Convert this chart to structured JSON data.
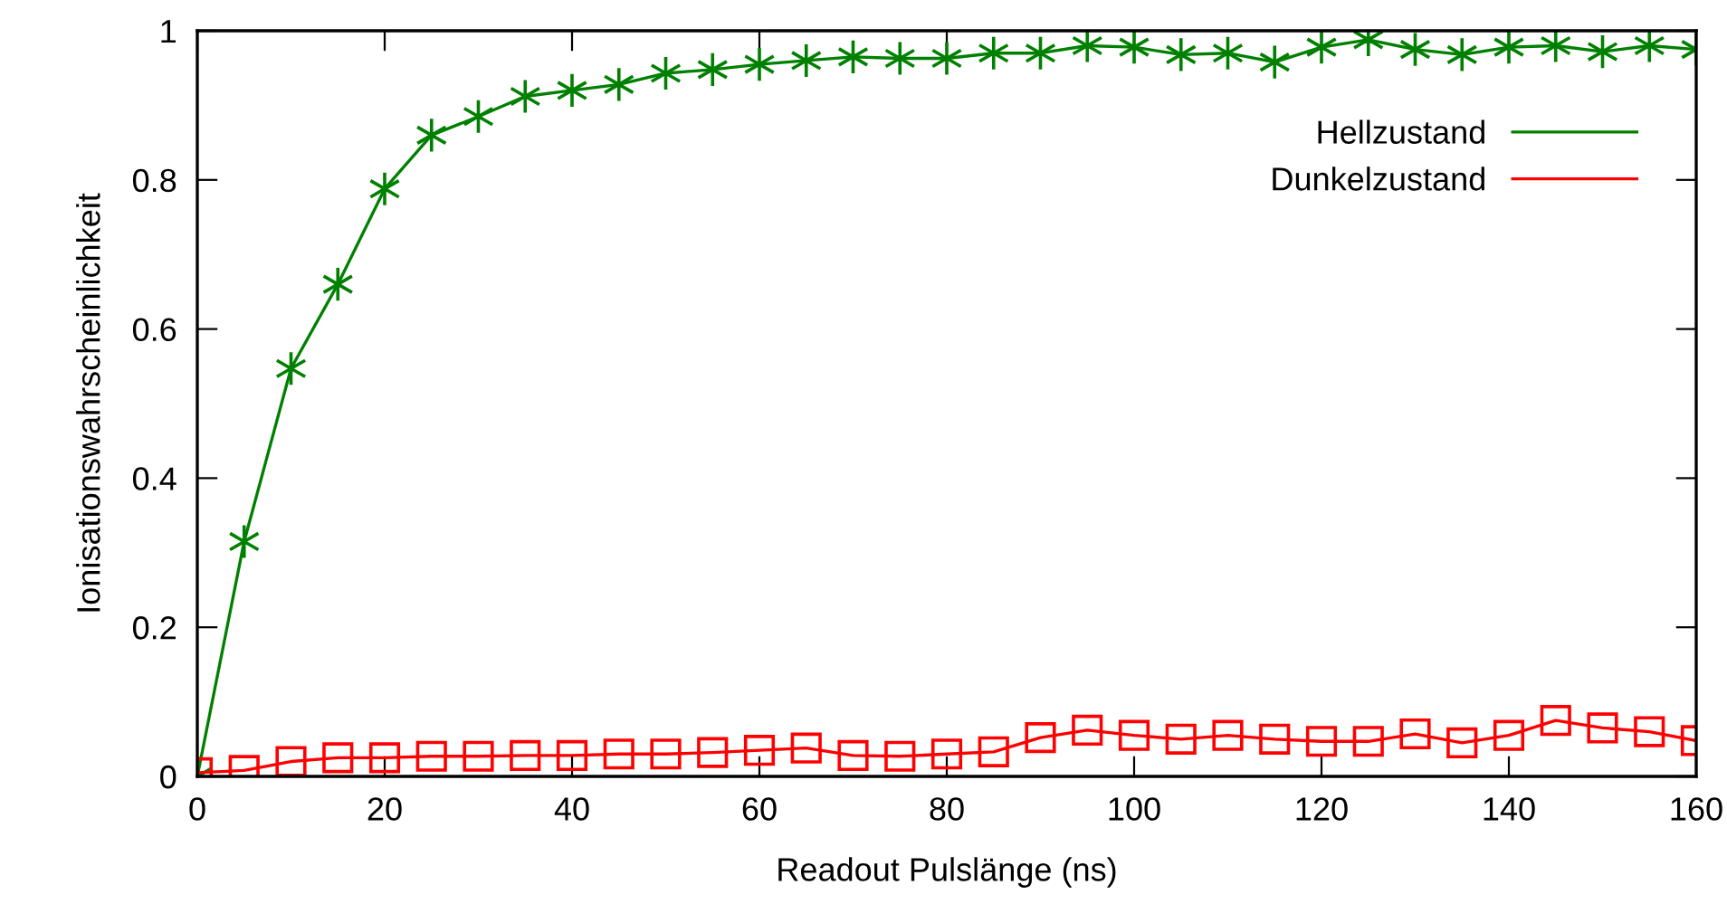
{
  "chart_data": {
    "type": "line",
    "xlabel": "Readout Pulslänge (ns)",
    "ylabel": "Ionisationswahrscheinlichkeit",
    "x": [
      0,
      5,
      10,
      15,
      20,
      25,
      30,
      35,
      40,
      45,
      50,
      55,
      60,
      65,
      70,
      75,
      80,
      85,
      90,
      95,
      100,
      105,
      110,
      115,
      120,
      125,
      130,
      135,
      140,
      145,
      150,
      155,
      160
    ],
    "series": [
      {
        "name": "Hellzustand",
        "color": "#008000",
        "marker": "cross",
        "values": [
          0,
          0.315,
          0.547,
          0.66,
          0.788,
          0.86,
          0.885,
          0.912,
          0.92,
          0.928,
          0.943,
          0.948,
          0.955,
          0.96,
          0.965,
          0.963,
          0.963,
          0.97,
          0.97,
          0.98,
          0.978,
          0.968,
          0.97,
          0.958,
          0.978,
          0.988,
          0.975,
          0.968,
          0.978,
          0.98,
          0.972,
          0.98,
          0.975
        ]
      },
      {
        "name": "Dunkelzustand",
        "color": "#ff0000",
        "marker": "square",
        "values": [
          0.005,
          0.008,
          0.02,
          0.025,
          0.025,
          0.027,
          0.027,
          0.028,
          0.028,
          0.03,
          0.03,
          0.032,
          0.035,
          0.038,
          0.028,
          0.027,
          0.03,
          0.033,
          0.052,
          0.062,
          0.055,
          0.05,
          0.055,
          0.05,
          0.047,
          0.047,
          0.057,
          0.045,
          0.055,
          0.075,
          0.065,
          0.06,
          0.048
        ]
      }
    ],
    "xlim": [
      0,
      160
    ],
    "xticks": [
      0,
      20,
      40,
      60,
      80,
      100,
      120,
      140,
      160
    ],
    "ylim": [
      0,
      1
    ],
    "yticks": [
      0,
      0.2,
      0.4,
      0.6,
      0.8,
      1
    ],
    "grid": false,
    "legend": "top right",
    "line_style": "solid"
  }
}
